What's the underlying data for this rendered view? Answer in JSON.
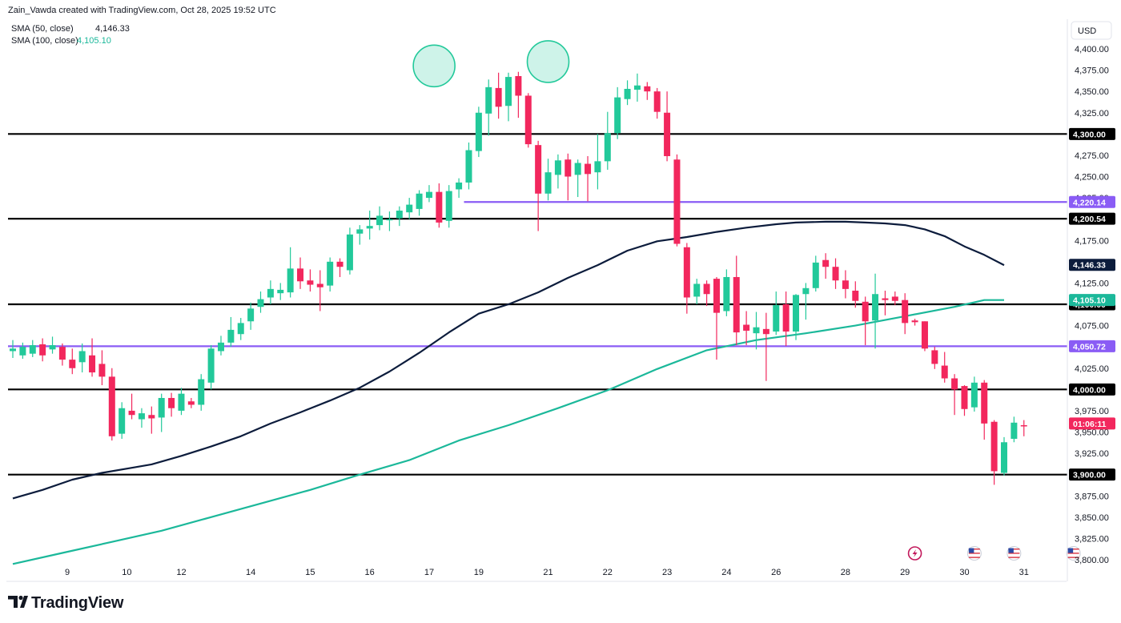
{
  "header": {
    "attribution": "Zain_Vawda created with TradingView.com, Oct 28, 2025 19:52 UTC",
    "indicators": [
      {
        "label": "SMA (50, close)",
        "value": "4,146.33",
        "color": "#0c1c3c"
      },
      {
        "label": "SMA (100, close)",
        "value": "4,105.10",
        "color": "#1bb89a"
      }
    ]
  },
  "currency_button": "USD",
  "footer": {
    "brand": "TradingView"
  },
  "colors": {
    "up": "#22c99a",
    "down": "#f2275d",
    "sma50": "#0c1c3c",
    "sma100": "#1bb89a",
    "level_black": "#000000",
    "level_purple": "#8a5cf5"
  },
  "chart_data": {
    "type": "candlestick",
    "y_ticks": [
      "4,400.00",
      "4,375.00",
      "4,350.00",
      "4,325.00",
      "4,275.00",
      "4,250.00",
      "4,225.00",
      "4,175.00",
      "4,150.00",
      "4,125.00",
      "4,075.00",
      "4,025.00",
      "3,975.00",
      "3,950.00",
      "3,925.00",
      "3,875.00",
      "3,850.00",
      "3,825.00",
      "3,800.00"
    ],
    "x_ticks": [
      {
        "label": "9",
        "index": 5.5
      },
      {
        "label": "10",
        "index": 11.5
      },
      {
        "label": "12",
        "index": 17
      },
      {
        "label": "14",
        "index": 24
      },
      {
        "label": "15",
        "index": 30
      },
      {
        "label": "16",
        "index": 36
      },
      {
        "label": "17",
        "index": 42
      },
      {
        "label": "19",
        "index": 47
      },
      {
        "label": "21",
        "index": 54
      },
      {
        "label": "22",
        "index": 60
      },
      {
        "label": "23",
        "index": 66
      },
      {
        "label": "24",
        "index": 72
      },
      {
        "label": "26",
        "index": 77
      },
      {
        "label": "28",
        "index": 84
      },
      {
        "label": "29",
        "index": 90
      },
      {
        "label": "30",
        "index": 96
      },
      {
        "label": "31",
        "index": 102
      }
    ],
    "ylim": [
      3795,
      4412
    ],
    "candles": [
      [
        4045,
        4048,
        4037,
        4058
      ],
      [
        4040,
        4050,
        4036,
        4055
      ],
      [
        4042,
        4052,
        4038,
        4058
      ],
      [
        4053,
        4040,
        4033,
        4060
      ],
      [
        4047,
        4052,
        4042,
        4062
      ],
      [
        4050,
        4035,
        4028,
        4054
      ],
      [
        4035,
        4025,
        4018,
        4048
      ],
      [
        4032,
        4045,
        4020,
        4054
      ],
      [
        4040,
        4020,
        4015,
        4060
      ],
      [
        4030,
        4015,
        4005,
        4046
      ],
      [
        4015,
        3945,
        3940,
        4025
      ],
      [
        3948,
        3978,
        3942,
        3985
      ],
      [
        3975,
        3970,
        3965,
        3995
      ],
      [
        3965,
        3972,
        3955,
        3978
      ],
      [
        3970,
        3966,
        3948,
        3980
      ],
      [
        3967,
        3990,
        3950,
        3995
      ],
      [
        3990,
        3978,
        3968,
        3996
      ],
      [
        3975,
        3995,
        3970,
        4002
      ],
      [
        3986,
        3982,
        3978,
        3990
      ],
      [
        3982,
        4012,
        3975,
        4018
      ],
      [
        4008,
        4048,
        4000,
        4052
      ],
      [
        4045,
        4055,
        4040,
        4063
      ],
      [
        4055,
        4070,
        4050,
        4085
      ],
      [
        4065,
        4078,
        4058,
        4084
      ],
      [
        4080,
        4095,
        4070,
        4102
      ],
      [
        4097,
        4106,
        4090,
        4115
      ],
      [
        4108,
        4118,
        4100,
        4128
      ],
      [
        4113,
        4117,
        4105,
        4125
      ],
      [
        4114,
        4142,
        4108,
        4167
      ],
      [
        4142,
        4127,
        4118,
        4155
      ],
      [
        4128,
        4123,
        4115,
        4141
      ],
      [
        4124,
        4120,
        4092,
        4140
      ],
      [
        4122,
        4150,
        4115,
        4155
      ],
      [
        4150,
        4144,
        4132,
        4154
      ],
      [
        4140,
        4182,
        4135,
        4190
      ],
      [
        4183,
        4188,
        4170,
        4193
      ],
      [
        4189,
        4192,
        4176,
        4210
      ],
      [
        4193,
        4204,
        4187,
        4215
      ],
      [
        4200,
        4200,
        4186,
        4209
      ],
      [
        4201,
        4210,
        4192,
        4215
      ],
      [
        4208,
        4217,
        4200,
        4225
      ],
      [
        4212,
        4230,
        4204,
        4234
      ],
      [
        4225,
        4232,
        4220,
        4240
      ],
      [
        4232,
        4196,
        4190,
        4242
      ],
      [
        4198,
        4233,
        4190,
        4240
      ],
      [
        4235,
        4243,
        4225,
        4248
      ],
      [
        4243,
        4281,
        4235,
        4290
      ],
      [
        4280,
        4325,
        4273,
        4332
      ],
      [
        4324,
        4355,
        4298,
        4364
      ],
      [
        4354,
        4332,
        4318,
        4372
      ],
      [
        4333,
        4367,
        4315,
        4372
      ],
      [
        4368,
        4345,
        4319,
        4373
      ],
      [
        4345,
        4288,
        4284,
        4348
      ],
      [
        4287,
        4230,
        4186,
        4292
      ],
      [
        4230,
        4255,
        4222,
        4271
      ],
      [
        4252,
        4269,
        4236,
        4276
      ],
      [
        4270,
        4250,
        4222,
        4277
      ],
      [
        4252,
        4266,
        4226,
        4270
      ],
      [
        4265,
        4253,
        4221,
        4274
      ],
      [
        4255,
        4268,
        4235,
        4300
      ],
      [
        4268,
        4301,
        4258,
        4326
      ],
      [
        4301,
        4343,
        4294,
        4355
      ],
      [
        4341,
        4353,
        4334,
        4363
      ],
      [
        4352,
        4357,
        4338,
        4371
      ],
      [
        4356,
        4350,
        4340,
        4361
      ],
      [
        4350,
        4326,
        4318,
        4354
      ],
      [
        4325,
        4274,
        4268,
        4350
      ],
      [
        4270,
        4171,
        4168,
        4276
      ],
      [
        4167,
        4108,
        4089,
        4172
      ],
      [
        4109,
        4124,
        4100,
        4130
      ],
      [
        4124,
        4112,
        4098,
        4128
      ],
      [
        4130,
        4090,
        4035,
        4132
      ],
      [
        4092,
        4132,
        4086,
        4141
      ],
      [
        4132,
        4067,
        4052,
        4157
      ],
      [
        4076,
        4069,
        4052,
        4092
      ],
      [
        4066,
        4073,
        4047,
        4091
      ],
      [
        4071,
        4065,
        4010,
        4090
      ],
      [
        4068,
        4099,
        4064,
        4115
      ],
      [
        4100,
        4068,
        4051,
        4115
      ],
      [
        4068,
        4111,
        4058,
        4112
      ],
      [
        4112,
        4119,
        4082,
        4125
      ],
      [
        4119,
        4149,
        4115,
        4157
      ],
      [
        4152,
        4144,
        4130,
        4160
      ],
      [
        4144,
        4128,
        4118,
        4154
      ],
      [
        4128,
        4118,
        4107,
        4140
      ],
      [
        4116,
        4104,
        4096,
        4127
      ],
      [
        4103,
        4080,
        4052,
        4109
      ],
      [
        4081,
        4112,
        4048,
        4136
      ],
      [
        4107,
        4105,
        4087,
        4116
      ],
      [
        4109,
        4104,
        4099,
        4115
      ],
      [
        4105,
        4078,
        4065,
        4113
      ],
      [
        4081,
        4079,
        4075,
        4083
      ],
      [
        4080,
        4048,
        4045,
        4080
      ],
      [
        4046,
        4030,
        4024,
        4050
      ],
      [
        4028,
        4013,
        4008,
        4044
      ],
      [
        4013,
        4000,
        3970,
        4018
      ],
      [
        4004,
        3977,
        3969,
        4005
      ],
      [
        3979,
        4008,
        3974,
        4015
      ],
      [
        4008,
        3960,
        3941,
        4011
      ],
      [
        3962,
        3904,
        3888,
        3964
      ],
      [
        3902,
        3938,
        3899,
        3944
      ],
      [
        3942,
        3961,
        3938,
        3968
      ],
      [
        3958,
        3957,
        3945,
        3964
      ]
    ],
    "sma50": [
      [
        0,
        3872
      ],
      [
        3,
        3882
      ],
      [
        6,
        3894
      ],
      [
        9,
        3902
      ],
      [
        12,
        3908
      ],
      [
        14,
        3912
      ],
      [
        17,
        3922
      ],
      [
        20,
        3933
      ],
      [
        23,
        3945
      ],
      [
        26,
        3960
      ],
      [
        29,
        3973
      ],
      [
        32,
        3987
      ],
      [
        35,
        4002
      ],
      [
        38,
        4021
      ],
      [
        41,
        4043
      ],
      [
        44,
        4067
      ],
      [
        47,
        4089
      ],
      [
        50,
        4100
      ],
      [
        53,
        4114
      ],
      [
        56,
        4131
      ],
      [
        59,
        4146
      ],
      [
        62,
        4163
      ],
      [
        65,
        4174
      ],
      [
        68,
        4179
      ],
      [
        71,
        4185
      ],
      [
        74,
        4190
      ],
      [
        77,
        4194
      ],
      [
        79,
        4196
      ],
      [
        82,
        4197
      ],
      [
        84,
        4197
      ],
      [
        86,
        4196
      ],
      [
        88,
        4195
      ],
      [
        90,
        4193
      ],
      [
        92,
        4188
      ],
      [
        94,
        4180
      ],
      [
        96,
        4168
      ],
      [
        98,
        4158
      ],
      [
        100,
        4146
      ]
    ],
    "sma100": [
      [
        0,
        3795
      ],
      [
        5,
        3808
      ],
      [
        10,
        3821
      ],
      [
        15,
        3834
      ],
      [
        20,
        3850
      ],
      [
        25,
        3866
      ],
      [
        30,
        3882
      ],
      [
        35,
        3900
      ],
      [
        40,
        3917
      ],
      [
        45,
        3940
      ],
      [
        50,
        3958
      ],
      [
        55,
        3978
      ],
      [
        60,
        3999
      ],
      [
        65,
        4024
      ],
      [
        70,
        4046
      ],
      [
        75,
        4058
      ],
      [
        80,
        4066
      ],
      [
        85,
        4075
      ],
      [
        90,
        4086
      ],
      [
        95,
        4097
      ],
      [
        98,
        4105
      ],
      [
        100,
        4105
      ]
    ],
    "levels": [
      {
        "value": 4300,
        "label": "4,300.00",
        "color": "#000000",
        "start": 0
      },
      {
        "value": 4220.14,
        "label": "4,220.14",
        "color": "#8a5cf5",
        "start": 46
      },
      {
        "value": 4200.54,
        "label": "4,200.54",
        "color": "#000000",
        "start": 0
      },
      {
        "value": 4100,
        "label": "4,100.00",
        "color": "#000000",
        "start": 0
      },
      {
        "value": 4050.72,
        "label": "4,050.72",
        "color": "#8a5cf5",
        "start": 0
      },
      {
        "value": 4000,
        "label": "4,000.00",
        "color": "#000000",
        "start": 0
      },
      {
        "value": 3900,
        "label": "3,900.00",
        "color": "#000000",
        "start": 0
      }
    ],
    "price_labels": [
      {
        "label": "4,146.33",
        "value": 4146.33,
        "bg": "#0c1c3c",
        "fg": "#ffffff"
      },
      {
        "label": "4,105.10",
        "value": 4105.1,
        "bg": "#1bb89a",
        "fg": "#ffffff"
      },
      {
        "label": "01:06:11",
        "value": 3960,
        "bg": "#f2275d",
        "fg": "#ffffff"
      }
    ],
    "annotations": [
      {
        "type": "circle",
        "index": 42.5,
        "value": 4380
      },
      {
        "type": "circle",
        "index": 54,
        "value": 4385
      }
    ],
    "event_icons": [
      {
        "icon": "lightning-event-icon",
        "index": 91,
        "kind": "lightning"
      },
      {
        "icon": "us-flag-event-icon",
        "index": 97,
        "kind": "flag"
      },
      {
        "icon": "us-flag-event-icon",
        "index": 101,
        "kind": "flag"
      },
      {
        "icon": "us-flag-event-icon",
        "index": 107,
        "kind": "flag"
      }
    ]
  }
}
